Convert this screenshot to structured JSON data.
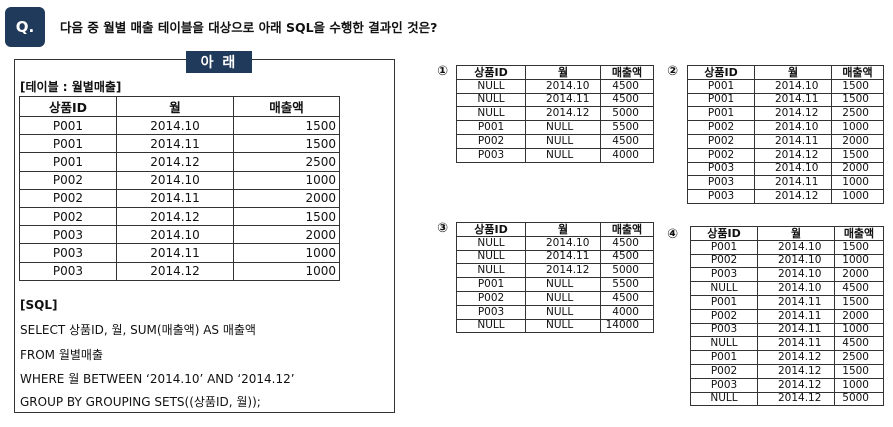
{
  "question": {
    "badge": "Q.",
    "text": "다음 중 월별 매출 테이블을 대상으로 아래 SQL을 수행한 결과인 것은?"
  },
  "reference_box": {
    "tag": "아 래",
    "table_caption": "[테이블 : 월별매출]",
    "headers": [
      "상품ID",
      "월",
      "매출액"
    ],
    "rows": [
      [
        "P001",
        "2014.10",
        "1500"
      ],
      [
        "P001",
        "2014.11",
        "1500"
      ],
      [
        "P001",
        "2014.12",
        "2500"
      ],
      [
        "P002",
        "2014.10",
        "1000"
      ],
      [
        "P002",
        "2014.11",
        "2000"
      ],
      [
        "P002",
        "2014.12",
        "1500"
      ],
      [
        "P003",
        "2014.10",
        "2000"
      ],
      [
        "P003",
        "2014.11",
        "1000"
      ],
      [
        "P003",
        "2014.12",
        "1000"
      ]
    ],
    "sql_label": "[SQL]",
    "sql_lines": [
      "SELECT    상품ID, 월, SUM(매출액) AS 매출액",
      "FROM      월별매출",
      "WHERE    월 BETWEEN ‘2014.10’ AND ‘2014.12’",
      "GROUP BY GROUPING SETS((상품ID, 월));"
    ]
  },
  "options": [
    {
      "number": "①",
      "headers": [
        "상품ID",
        "월",
        "매출액"
      ],
      "rows": [
        [
          "NULL",
          "2014.10",
          "4500"
        ],
        [
          "NULL",
          "2014.11",
          "4500"
        ],
        [
          "NULL",
          "2014.12",
          "5000"
        ],
        [
          "P001",
          "NULL",
          "5500"
        ],
        [
          "P002",
          "NULL",
          "4500"
        ],
        [
          "P003",
          "NULL",
          "4000"
        ]
      ]
    },
    {
      "number": "②",
      "headers": [
        "상품ID",
        "월",
        "매출액"
      ],
      "rows": [
        [
          "P001",
          "2014.10",
          "1500"
        ],
        [
          "P001",
          "2014.11",
          "1500"
        ],
        [
          "P001",
          "2014.12",
          "2500"
        ],
        [
          "P002",
          "2014.10",
          "1000"
        ],
        [
          "P002",
          "2014.11",
          "2000"
        ],
        [
          "P002",
          "2014.12",
          "1500"
        ],
        [
          "P003",
          "2014.10",
          "2000"
        ],
        [
          "P003",
          "2014.11",
          "1000"
        ],
        [
          "P003",
          "2014.12",
          "1000"
        ]
      ]
    },
    {
      "number": "③",
      "headers": [
        "상품ID",
        "월",
        "매출액"
      ],
      "rows": [
        [
          "NULL",
          "2014.10",
          "4500"
        ],
        [
          "NULL",
          "2014.11",
          "4500"
        ],
        [
          "NULL",
          "2014.12",
          "5000"
        ],
        [
          "P001",
          "NULL",
          "5500"
        ],
        [
          "P002",
          "NULL",
          "4500"
        ],
        [
          "P003",
          "NULL",
          "4000"
        ],
        [
          "NULL",
          "NULL",
          "14000"
        ]
      ]
    },
    {
      "number": "④",
      "headers": [
        "상품ID",
        "월",
        "매출액"
      ],
      "rows": [
        [
          "P001",
          "2014.10",
          "1500"
        ],
        [
          "P002",
          "2014.10",
          "1000"
        ],
        [
          "P003",
          "2014.10",
          "2000"
        ],
        [
          "NULL",
          "2014.10",
          "4500"
        ],
        [
          "P001",
          "2014.11",
          "1500"
        ],
        [
          "P002",
          "2014.11",
          "2000"
        ],
        [
          "P003",
          "2014.11",
          "1000"
        ],
        [
          "NULL",
          "2014.11",
          "4500"
        ],
        [
          "P001",
          "2014.12",
          "2500"
        ],
        [
          "P002",
          "2014.12",
          "1500"
        ],
        [
          "P003",
          "2014.12",
          "1000"
        ],
        [
          "NULL",
          "2014.12",
          "5000"
        ]
      ]
    }
  ]
}
